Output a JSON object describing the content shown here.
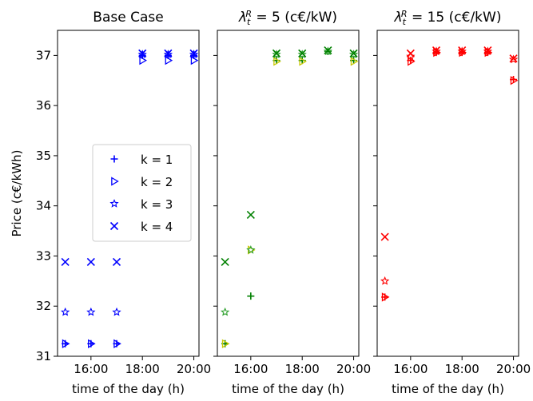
{
  "chart_data": {
    "type": "scatter",
    "ylabel": "Price (c€/kWh)",
    "xlabel": "time of the day (h)",
    "ylim": [
      31,
      37.5
    ],
    "xlim": [
      14.7,
      20.2
    ],
    "yticks": [
      31,
      32,
      33,
      34,
      35,
      36,
      37
    ],
    "ytick_labels": [
      "31",
      "32",
      "33",
      "34",
      "35",
      "36",
      "37"
    ],
    "xticks": [
      16,
      18,
      20
    ],
    "xtick_labels": [
      "16:00",
      "18:00",
      "20:00"
    ],
    "legend": {
      "placement": "center-right",
      "entries": [
        "k = 1",
        "k = 2",
        "k = 3",
        "k = 4"
      ]
    },
    "panels": [
      {
        "title": "Base Case",
        "title_parts": [],
        "series": [
          {
            "label": "k = 1",
            "marker": "plus",
            "color": "#0000ff",
            "x": [
              15,
              16,
              17,
              18,
              19,
              20
            ],
            "y": [
              31.25,
              31.25,
              31.25,
              37.0,
              37.0,
              37.0
            ]
          },
          {
            "label": "k = 2",
            "marker": "triangle-right",
            "color": "#0000ff",
            "x": [
              15,
              16,
              17,
              18,
              19,
              20
            ],
            "y": [
              31.25,
              31.25,
              31.25,
              36.9,
              36.9,
              36.9
            ]
          },
          {
            "label": "k = 3",
            "marker": "star",
            "color": "#0000ff",
            "x": [
              15,
              16,
              17,
              18,
              19,
              20
            ],
            "y": [
              31.88,
              31.88,
              31.88,
              37.02,
              37.02,
              37.02
            ]
          },
          {
            "label": "k = 4",
            "marker": "x",
            "color": "#0000ff",
            "x": [
              15,
              16,
              17,
              18,
              19,
              20
            ],
            "y": [
              32.88,
              32.88,
              32.88,
              37.04,
              37.04,
              37.04
            ]
          }
        ]
      },
      {
        "title": "",
        "title_parts": [
          "λ",
          "t",
          "R",
          " = 5 (c€/kW)"
        ],
        "series": [
          {
            "label": "k = 1",
            "marker": "plus",
            "color": "#008000",
            "x": [
              15,
              16,
              17,
              18,
              19,
              20
            ],
            "y": [
              31.25,
              32.2,
              36.9,
              36.9,
              37.08,
              36.9
            ]
          },
          {
            "label": "k = 2",
            "marker": "triangle-right",
            "color": "#c8c800",
            "x": [
              15,
              16,
              17,
              18,
              20
            ],
            "y": [
              31.25,
              33.12,
              36.88,
              36.88,
              36.88
            ]
          },
          {
            "label": "k = 3",
            "marker": "star",
            "color": "#2ca02c",
            "x": [
              15,
              16,
              17,
              18,
              19,
              20
            ],
            "y": [
              31.88,
              33.12,
              37.02,
              37.02,
              37.08,
              37.02
            ]
          },
          {
            "label": "k = 4",
            "marker": "x",
            "color": "#008000",
            "x": [
              15,
              16,
              17,
              18,
              19,
              20
            ],
            "y": [
              32.88,
              33.82,
              37.04,
              37.04,
              37.1,
              37.04
            ]
          }
        ]
      },
      {
        "title": "",
        "title_parts": [
          "λ",
          "t",
          "R",
          " = 15 (c€/kW)"
        ],
        "series": [
          {
            "label": "k = 1",
            "marker": "plus",
            "color": "#ff0000",
            "x": [
              15,
              16,
              17,
              18,
              19,
              20
            ],
            "y": [
              32.18,
              36.9,
              37.06,
              37.06,
              37.06,
              36.52
            ]
          },
          {
            "label": "k = 2",
            "marker": "triangle-right",
            "color": "#ff0000",
            "x": [
              15,
              16,
              17,
              18,
              19,
              20
            ],
            "y": [
              32.18,
              36.88,
              37.06,
              37.06,
              37.06,
              36.5
            ]
          },
          {
            "label": "k = 3",
            "marker": "star",
            "color": "#ff0000",
            "x": [
              15,
              16,
              17,
              18,
              19,
              20
            ],
            "y": [
              32.5,
              36.98,
              37.08,
              37.08,
              37.08,
              36.92
            ]
          },
          {
            "label": "k = 4",
            "marker": "x",
            "color": "#ff0000",
            "x": [
              15,
              16,
              17,
              18,
              19,
              20
            ],
            "y": [
              33.38,
              37.04,
              37.1,
              37.1,
              37.1,
              36.94
            ]
          }
        ]
      }
    ]
  }
}
